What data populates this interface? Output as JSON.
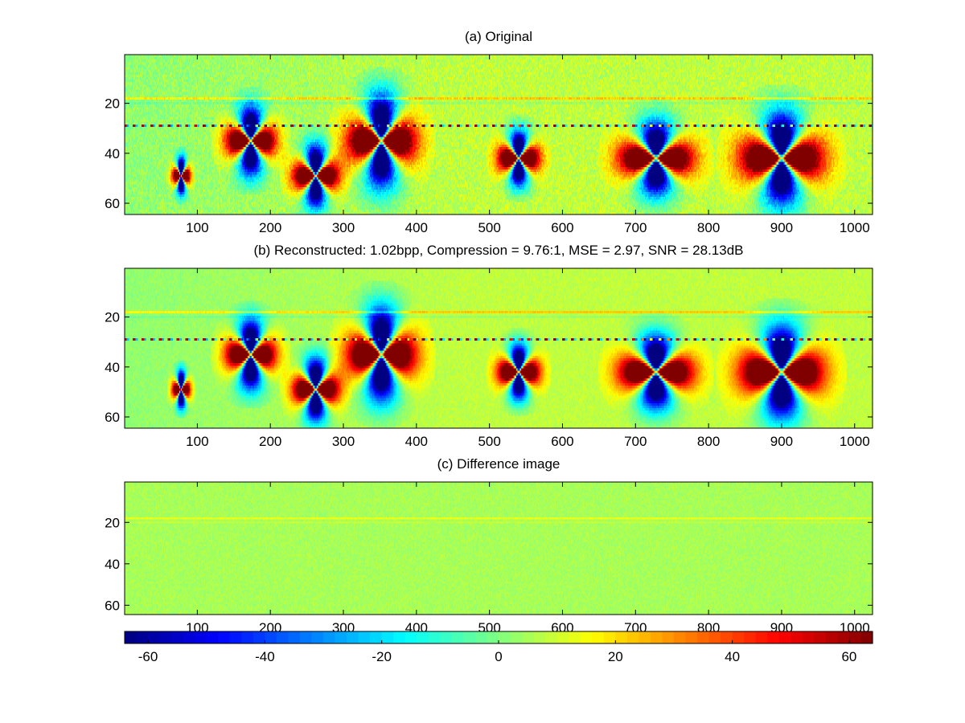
{
  "chart_data": [
    {
      "type": "heatmap",
      "title": "(a) Original",
      "xlim": [
        1,
        1024
      ],
      "ylim": [
        1,
        64
      ],
      "y_reversed": true,
      "x_ticks": [
        100,
        200,
        300,
        400,
        500,
        600,
        700,
        800,
        900,
        1000
      ],
      "y_ticks": [
        20,
        40,
        60
      ],
      "background_value": 8,
      "left_region_value": 2,
      "noise_amplitude": 6,
      "stripes": [
        {
          "row": 18,
          "value": 14
        },
        {
          "row": 20,
          "value": -4
        },
        {
          "row": 29,
          "value": 18,
          "dotted": true
        }
      ],
      "features": [
        {
          "x": 78,
          "y": 49,
          "width": 20,
          "height": 12,
          "peak": 64
        },
        {
          "x": 173,
          "y": 35,
          "width": 55,
          "height": 22,
          "peak": 64
        },
        {
          "x": 262,
          "y": 49,
          "width": 50,
          "height": 20,
          "peak": 64
        },
        {
          "x": 352,
          "y": 35,
          "width": 75,
          "height": 30,
          "peak": 64
        },
        {
          "x": 540,
          "y": 42,
          "width": 45,
          "height": 18,
          "peak": 64
        },
        {
          "x": 728,
          "y": 42,
          "width": 80,
          "height": 24,
          "peak": 64
        },
        {
          "x": 900,
          "y": 42,
          "width": 90,
          "height": 30,
          "peak": 64
        }
      ]
    },
    {
      "type": "heatmap",
      "title": "(b) Reconstructed: 1.02bpp, Compression = 9.76:1, MSE = 2.97, SNR = 28.13dB",
      "xlim": [
        1,
        1024
      ],
      "ylim": [
        1,
        64
      ],
      "y_reversed": true,
      "x_ticks": [
        100,
        200,
        300,
        400,
        500,
        600,
        700,
        800,
        900,
        1000
      ],
      "y_ticks": [
        20,
        40,
        60
      ],
      "background_value": 8,
      "left_region_value": 2,
      "noise_amplitude": 3,
      "stripes": [
        {
          "row": 18,
          "value": 14
        },
        {
          "row": 20,
          "value": -4
        },
        {
          "row": 29,
          "value": 18,
          "dotted": true
        }
      ],
      "features": [
        {
          "x": 78,
          "y": 49,
          "width": 20,
          "height": 12,
          "peak": 64
        },
        {
          "x": 173,
          "y": 35,
          "width": 55,
          "height": 22,
          "peak": 64
        },
        {
          "x": 262,
          "y": 49,
          "width": 50,
          "height": 20,
          "peak": 64
        },
        {
          "x": 352,
          "y": 35,
          "width": 75,
          "height": 30,
          "peak": 64
        },
        {
          "x": 540,
          "y": 42,
          "width": 45,
          "height": 18,
          "peak": 64
        },
        {
          "x": 728,
          "y": 42,
          "width": 80,
          "height": 24,
          "peak": 64
        },
        {
          "x": 900,
          "y": 42,
          "width": 90,
          "height": 30,
          "peak": 64
        }
      ]
    },
    {
      "type": "heatmap",
      "title": "(c) Difference image",
      "xlim": [
        1,
        1024
      ],
      "ylim": [
        1,
        64
      ],
      "y_reversed": true,
      "x_ticks": [
        100,
        200,
        300,
        400,
        500,
        600,
        700,
        800,
        900,
        1000
      ],
      "y_ticks": [
        20,
        40,
        60
      ],
      "background_value": 5,
      "left_region_value": 5,
      "noise_amplitude": 3,
      "stripes": [
        {
          "row": 18,
          "value": 8
        },
        {
          "row": 20,
          "value": 3
        }
      ],
      "features": []
    }
  ],
  "colorbar": {
    "colormap": "jet",
    "range": [
      -64,
      64
    ],
    "ticks": [
      -60,
      -40,
      -20,
      0,
      20,
      40,
      60
    ]
  }
}
